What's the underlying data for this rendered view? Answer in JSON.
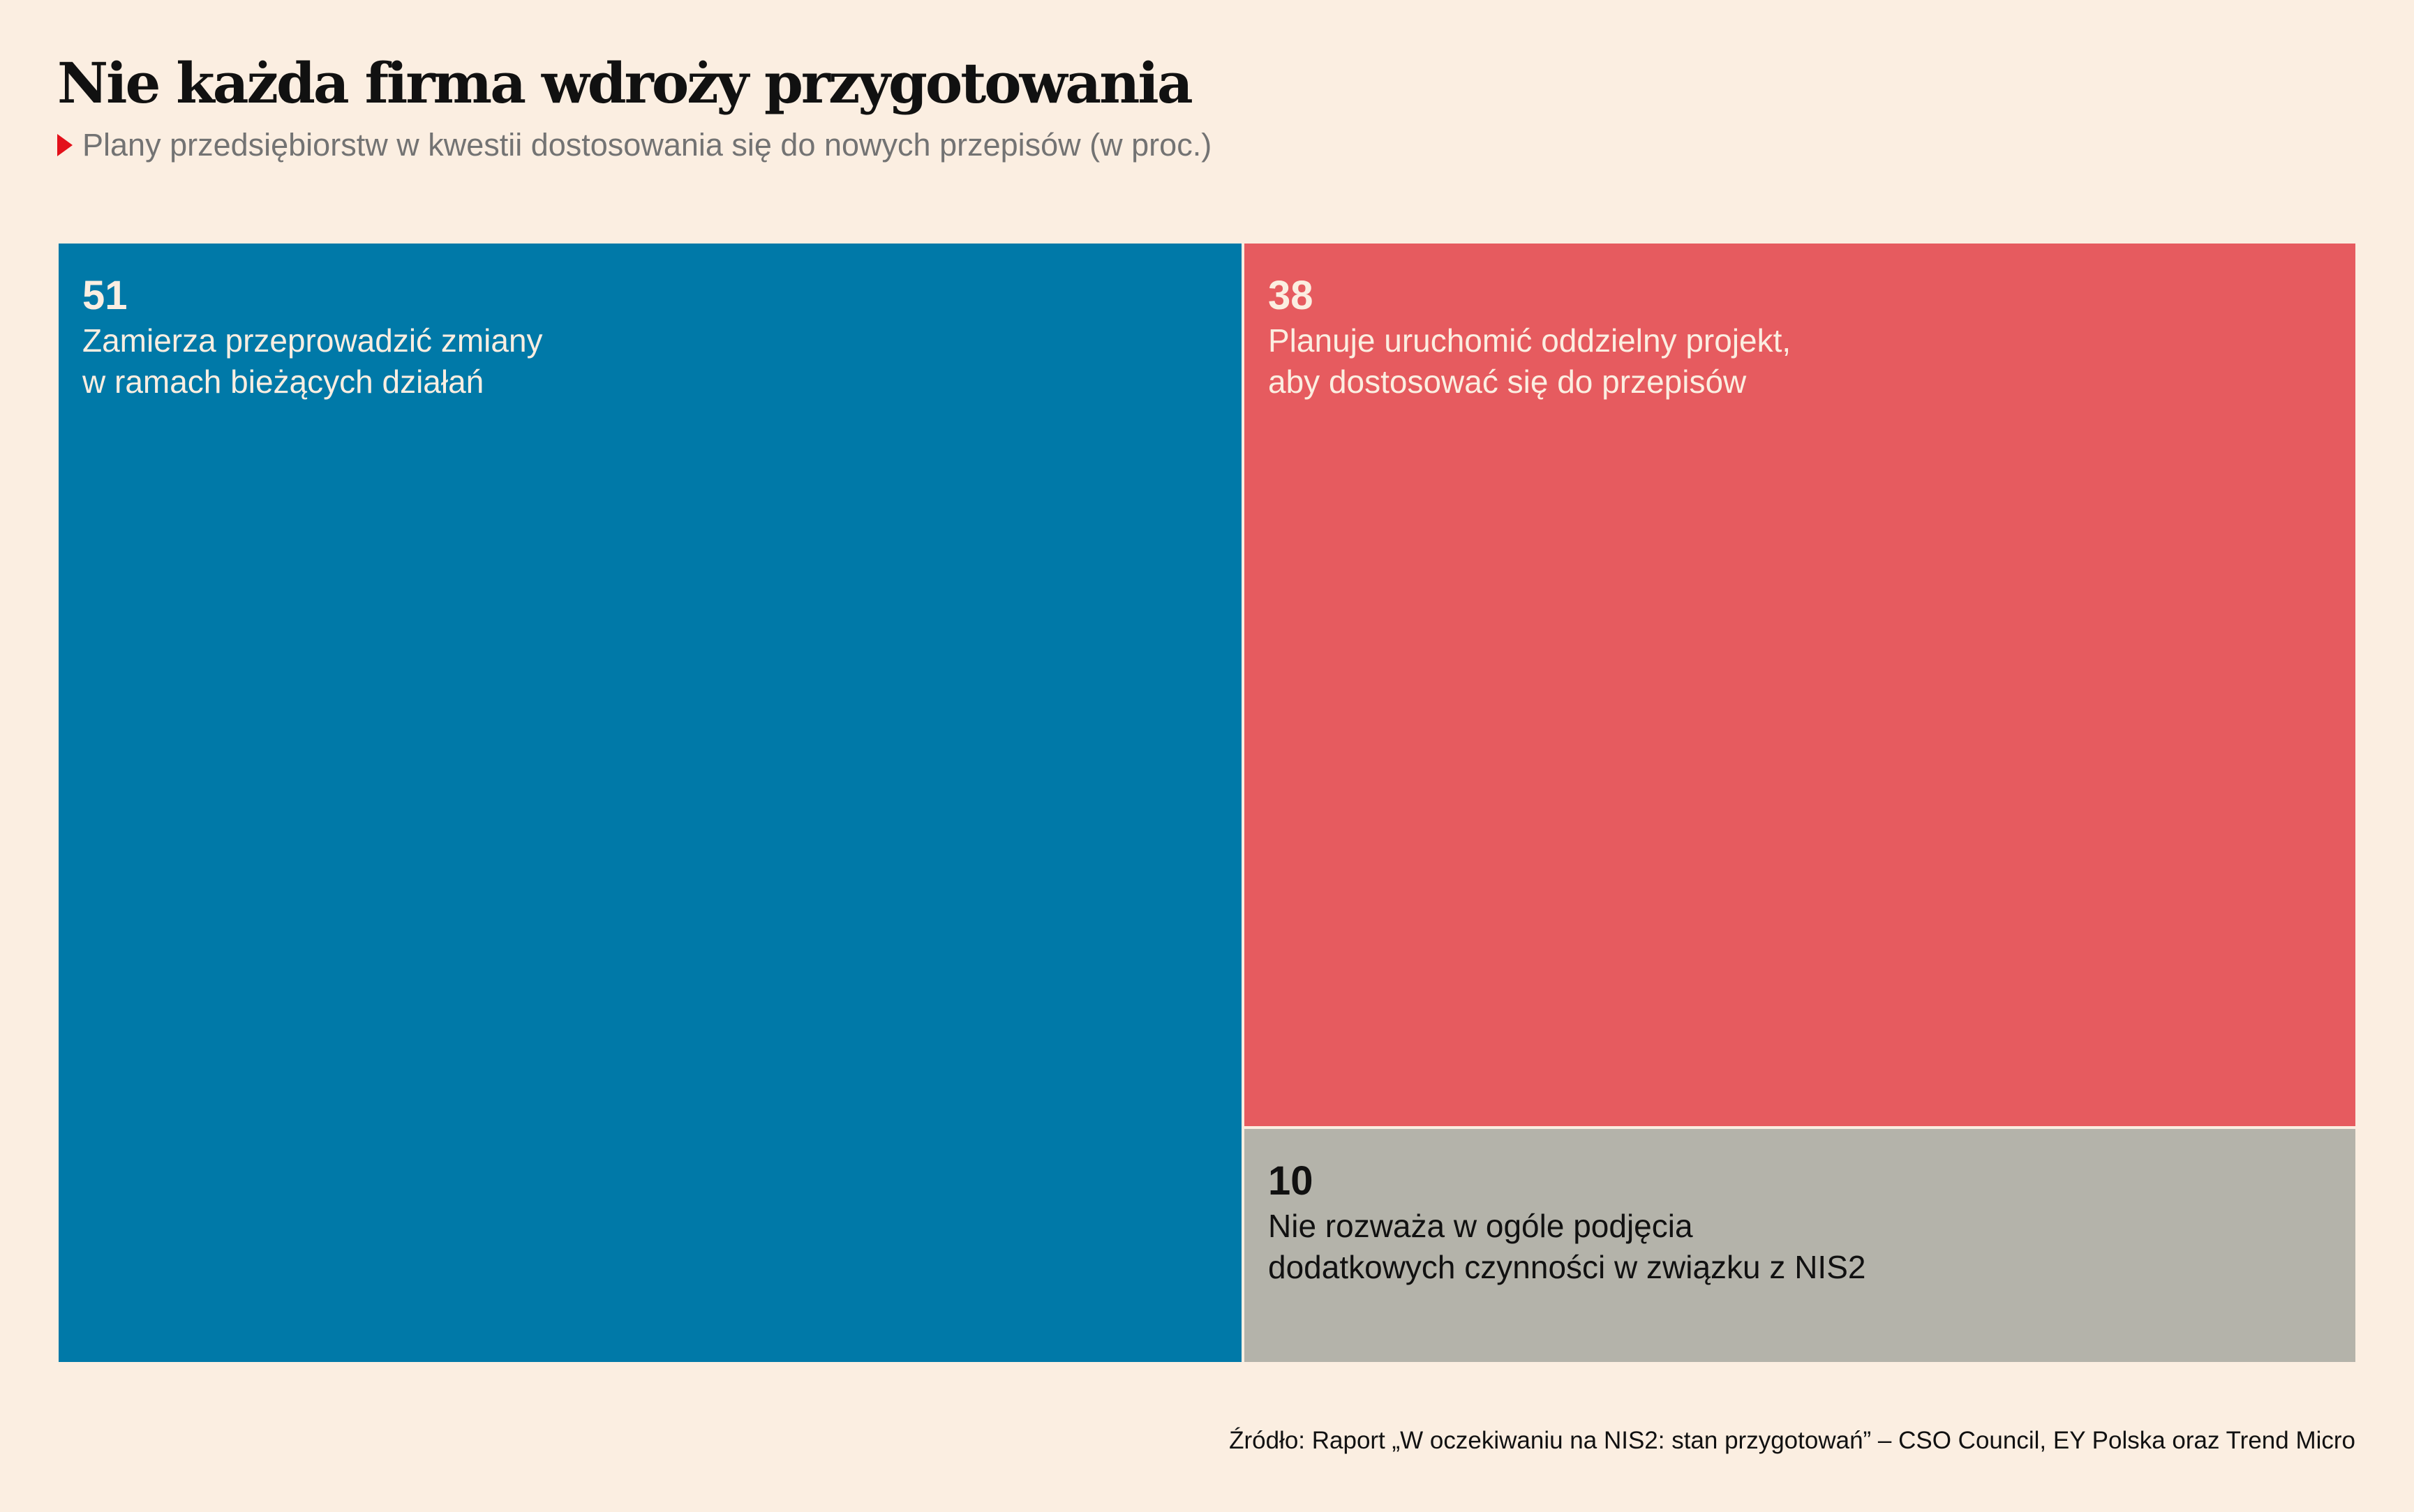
{
  "title": "Nie każda firma wdroży przygotowania",
  "subtitle": "Plany przedsiębiorstw w kwestii dostosowania się do nowych przepisów (w proc.)",
  "source": "Źródło: Raport „W oczekiwaniu na NIS2: stan przygotowań” – CSO Council, EY Polska oraz Trend Micro",
  "colors": {
    "accent": "#e3101a",
    "background": "#fbeee1"
  },
  "chart_data": {
    "type": "treemap",
    "title": "Nie każda firma wdroży przygotowania",
    "unit": "proc.",
    "items": [
      {
        "value": 51,
        "value_label": "51",
        "label": "Zamierza przeprowadzić zmiany\nw ramach bieżących działań",
        "color": "#0079a8",
        "text_color": "#fbeee1"
      },
      {
        "value": 38,
        "value_label": "38",
        "label": "Planuje uruchomić oddzielny projekt,\naby dostosować się do przepisów",
        "color": "#e65b5f",
        "text_color": "#fbeee1"
      },
      {
        "value": 10,
        "value_label": "10",
        "label": "Nie rozważa w ogóle podjęcia\ndodatkowych czynności w związku z NIS2",
        "color": "#b4b3aa",
        "text_color": "#111111"
      }
    ]
  }
}
